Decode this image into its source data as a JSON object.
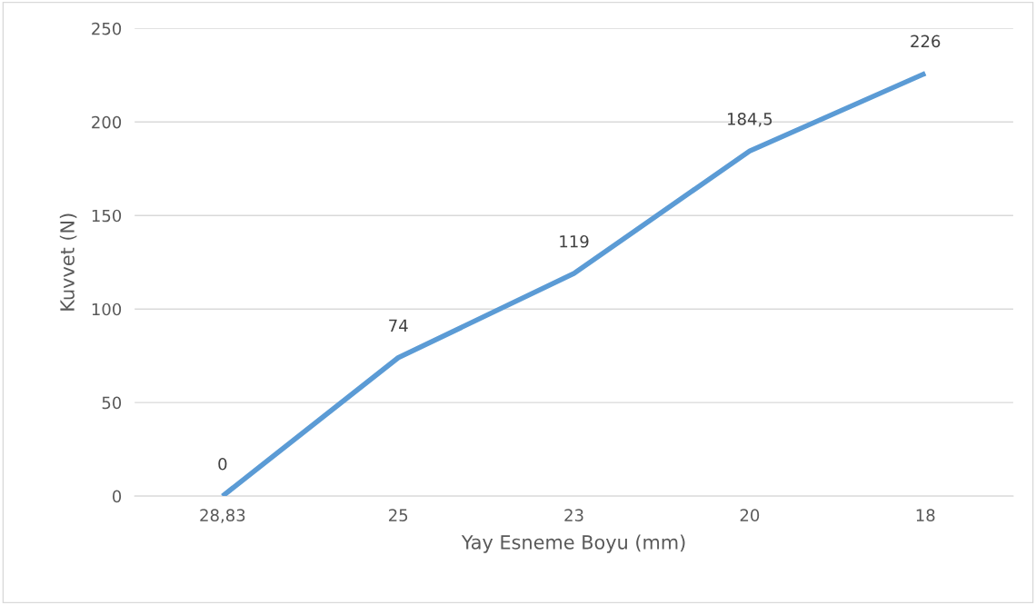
{
  "chart_data": {
    "type": "line",
    "xlabel": "Yay Esneme Boyu (mm)",
    "ylabel": "Kuvvet (N)",
    "categories": [
      "28,83",
      "25",
      "23",
      "20",
      "18"
    ],
    "series": [
      {
        "color": "#5b9bd5",
        "values": [
          0,
          74,
          119,
          184.5,
          226
        ],
        "value_labels": [
          "0",
          "74",
          "119",
          "184,5",
          "226"
        ]
      }
    ],
    "ylim": [
      0,
      250
    ],
    "yticks": [
      0,
      50,
      100,
      150,
      200,
      250
    ],
    "grid": "y",
    "legend": false,
    "marker": "none",
    "line_style": "solid"
  }
}
